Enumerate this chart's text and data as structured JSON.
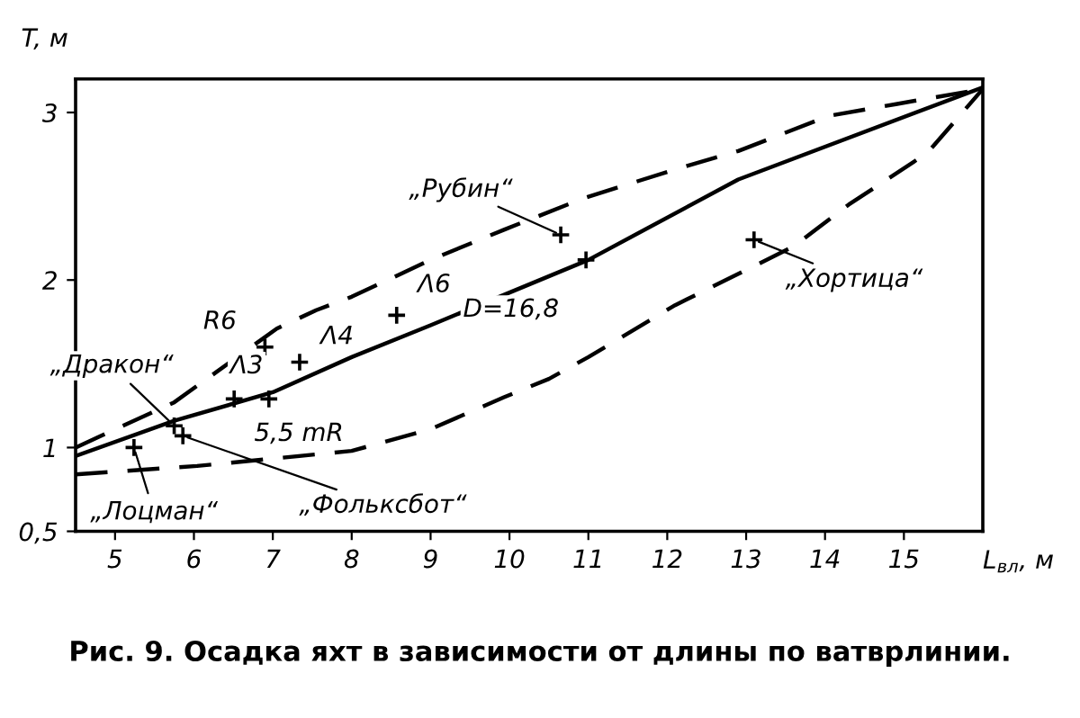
{
  "chart_data": {
    "type": "line",
    "xlabel": "L$_{вл}$, м",
    "ylabel": "T, м",
    "xlim": [
      4.5,
      16
    ],
    "ylim": [
      0.5,
      3.2
    ],
    "xticks": [
      5,
      6,
      7,
      8,
      9,
      10,
      11,
      12,
      13,
      14,
      15
    ],
    "yticks": [
      {
        "value": 0.5,
        "label": "0,5"
      },
      1,
      2,
      3
    ],
    "grid": false,
    "legend": false,
    "series": [
      {
        "color": "#000000",
        "line_style": "dashed",
        "marker": "none",
        "x": [
          4.5,
          5.75,
          7.05,
          7.55,
          8.0,
          9.0,
          9.93,
          10.95,
          12.1,
          12.9,
          14.05,
          14.9,
          16
        ],
        "values": [
          1.0,
          1.27,
          1.71,
          1.82,
          1.9,
          2.12,
          2.3,
          2.49,
          2.66,
          2.77,
          2.98,
          3.05,
          3.14
        ]
      },
      {
        "color": "#000000",
        "line_style": "solid",
        "marker": "none",
        "x": [
          4.5,
          5.75,
          7.0,
          8.0,
          9.0,
          11.0,
          12.9,
          16
        ],
        "values": [
          0.95,
          1.16,
          1.33,
          1.54,
          1.73,
          2.12,
          2.6,
          3.15
        ]
      },
      {
        "color": "#000000",
        "line_style": "dashed",
        "marker": "none",
        "x": [
          4.5,
          6.04,
          8.0,
          9.0,
          9.93,
          10.5,
          11.0,
          12.1,
          13.6,
          14.3,
          15.3,
          16
        ],
        "values": [
          0.84,
          0.89,
          0.98,
          1.11,
          1.3,
          1.41,
          1.54,
          1.85,
          2.2,
          2.45,
          2.76,
          3.14
        ]
      },
      {
        "type": "scatter",
        "color": "#000000",
        "marker": "cross",
        "x": [
          10.65,
          10.97,
          13.1,
          8.57,
          6.9,
          7.34,
          6.51,
          6.95,
          5.75,
          5.86,
          5.24
        ],
        "values": [
          2.27,
          2.12,
          2.24,
          1.79,
          1.6,
          1.51,
          1.29,
          1.29,
          1.13,
          1.07,
          1.0
        ]
      }
    ],
    "annotations": [
      {
        "text": "„Рубин“",
        "x": 10.65,
        "y": 2.27
      },
      {
        "text": "D=16,8",
        "x": 10.97,
        "y": 2.12
      },
      {
        "text": "„Хортица“",
        "x": 13.1,
        "y": 2.24
      },
      {
        "text": "Λ6",
        "x": 8.57,
        "y": 1.79
      },
      {
        "text": "R6",
        "x": 6.9,
        "y": 1.6
      },
      {
        "text": "Λ4",
        "x": 7.34,
        "y": 1.51
      },
      {
        "text": "Λ3",
        "x": 6.51,
        "y": 1.29
      },
      {
        "text": "5,5 mR",
        "x": 6.95,
        "y": 1.29
      },
      {
        "text": "„Дракон“",
        "x": 5.75,
        "y": 1.13
      },
      {
        "text": "„Фольксбот“",
        "x": 5.86,
        "y": 1.07
      },
      {
        "text": "„Лоцман“",
        "x": 5.24,
        "y": 1.0
      },
      "Рис. 9. Осадка яхт в зависимости от длины по ватврлинии."
    ]
  }
}
